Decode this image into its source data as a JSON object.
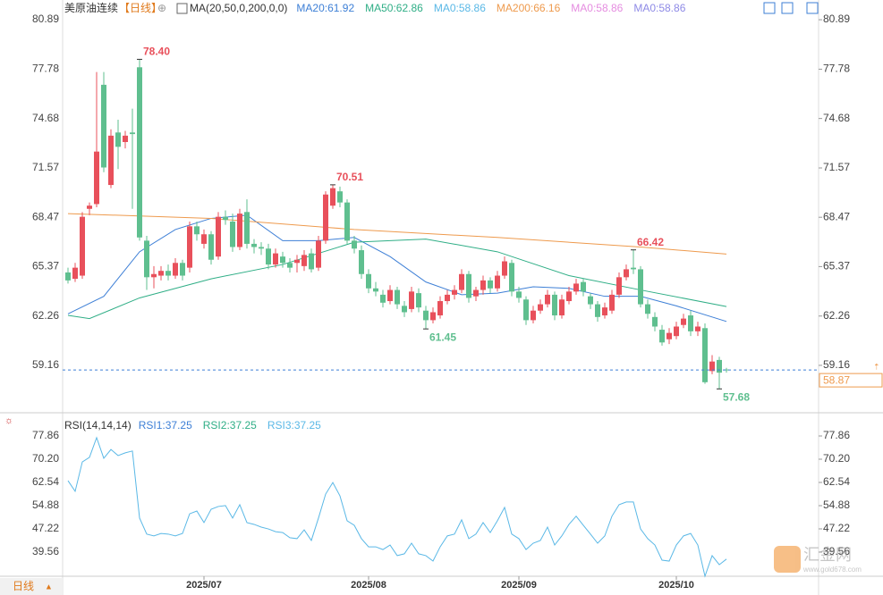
{
  "chart_data": [
    {
      "type": "candlestick",
      "title": "美原油连续",
      "period": "【日线】",
      "indicator": "MA(20,50,0,200,0,0)",
      "legend": [
        {
          "text": "MA20:61.92",
          "color": "#3d7fd6"
        },
        {
          "text": "MA50:62.86",
          "color": "#2fae86"
        },
        {
          "text": "MA0:58.86",
          "color": "#5ab8e6"
        },
        {
          "text": "MA200:66.16",
          "color": "#ee9a4d"
        },
        {
          "text": "MA0:58.86",
          "color": "#e58de0"
        },
        {
          "text": "MA0:58.86",
          "color": "#8e8ae6"
        }
      ],
      "up_color": "#e8505b",
      "down_color": "#5fbf8f",
      "ylim": [
        56.18,
        82.13
      ],
      "yticks": [
        59.16,
        62.26,
        65.37,
        68.47,
        71.57,
        74.68,
        77.78,
        80.89
      ],
      "last": {
        "value": 58.87,
        "label": "58.87"
      },
      "xticks": [
        {
          "value": 19,
          "label": "2025/07"
        },
        {
          "value": 42,
          "label": "2025/08"
        },
        {
          "value": 63,
          "label": "2025/09"
        },
        {
          "value": 85,
          "label": "2025/10"
        }
      ],
      "annotations": [
        {
          "index": 10,
          "value": 78.4,
          "label": "78.40",
          "color": "#e8505b"
        },
        {
          "index": 37,
          "value": 70.51,
          "color": "#e8505b"
        },
        {
          "index": 79,
          "value": 66.42,
          "color": "#e8505b"
        },
        {
          "index": 50,
          "value": 61.45,
          "color": "#5fbf8f"
        },
        {
          "index": 91,
          "value": 57.68,
          "color": "#5fbf8f"
        }
      ],
      "candles": [
        [
          65.0,
          65.3,
          64.3,
          64.5
        ],
        [
          64.6,
          65.6,
          64.4,
          65.3
        ],
        [
          64.8,
          68.8,
          64.6,
          68.5
        ],
        [
          69.0,
          69.4,
          68.6,
          69.2
        ],
        [
          69.3,
          77.6,
          69.1,
          72.6
        ],
        [
          76.8,
          77.6,
          71.3,
          71.6
        ],
        [
          70.5,
          74.0,
          70.3,
          73.6
        ],
        [
          73.8,
          74.6,
          71.5,
          72.9
        ],
        [
          73.2,
          73.9,
          72.8,
          73.6
        ],
        [
          73.8,
          75.3,
          69.0,
          73.7
        ],
        [
          77.9,
          78.4,
          67.0,
          67.2
        ],
        [
          67.0,
          67.3,
          63.9,
          64.7
        ],
        [
          64.7,
          65.4,
          64.0,
          64.9
        ],
        [
          64.8,
          65.4,
          64.5,
          65.1
        ],
        [
          65.1,
          65.5,
          64.5,
          64.8
        ],
        [
          64.8,
          65.9,
          64.6,
          65.6
        ],
        [
          65.6,
          65.8,
          64.5,
          64.8
        ],
        [
          65.3,
          68.2,
          65.0,
          67.9
        ],
        [
          67.9,
          68.2,
          67.0,
          67.4
        ],
        [
          66.8,
          67.7,
          66.5,
          67.4
        ],
        [
          67.4,
          67.6,
          65.5,
          65.8
        ],
        [
          66.0,
          68.8,
          65.8,
          68.5
        ],
        [
          68.5,
          68.9,
          68.0,
          68.3
        ],
        [
          68.2,
          68.7,
          66.3,
          66.6
        ],
        [
          66.6,
          69.0,
          66.4,
          68.7
        ],
        [
          68.8,
          69.6,
          66.5,
          66.8
        ],
        [
          66.8,
          67.1,
          66.2,
          66.6
        ],
        [
          66.6,
          66.9,
          66.1,
          66.5
        ],
        [
          66.5,
          66.8,
          65.2,
          65.5
        ],
        [
          65.5,
          66.5,
          65.3,
          66.2
        ],
        [
          66.0,
          66.3,
          65.3,
          65.6
        ],
        [
          65.6,
          65.9,
          65.0,
          65.3
        ],
        [
          65.6,
          66.1,
          65.0,
          65.8
        ],
        [
          65.4,
          66.4,
          65.1,
          66.1
        ],
        [
          66.2,
          66.5,
          65.0,
          65.2
        ],
        [
          65.3,
          67.3,
          65.1,
          67.0
        ],
        [
          67.0,
          70.1,
          66.8,
          69.9
        ],
        [
          69.2,
          70.51,
          69.0,
          70.3
        ],
        [
          70.1,
          70.4,
          69.1,
          69.4
        ],
        [
          69.4,
          69.6,
          66.8,
          67.0
        ],
        [
          67.0,
          67.3,
          66.2,
          66.5
        ],
        [
          66.4,
          66.7,
          64.6,
          64.9
        ],
        [
          64.9,
          65.2,
          63.7,
          64.0
        ],
        [
          64.0,
          64.4,
          63.5,
          63.8
        ],
        [
          63.6,
          63.9,
          62.8,
          63.1
        ],
        [
          63.2,
          64.2,
          63.0,
          63.9
        ],
        [
          63.9,
          64.1,
          62.7,
          63.0
        ],
        [
          62.9,
          63.2,
          62.2,
          62.5
        ],
        [
          62.7,
          64.1,
          62.5,
          63.8
        ],
        [
          63.7,
          64.0,
          62.5,
          62.8
        ],
        [
          62.6,
          62.9,
          61.45,
          62.0
        ],
        [
          62.0,
          62.8,
          61.8,
          62.5
        ],
        [
          62.3,
          63.5,
          62.1,
          63.2
        ],
        [
          63.2,
          63.9,
          63.0,
          63.6
        ],
        [
          63.6,
          64.2,
          63.3,
          63.9
        ],
        [
          63.9,
          65.2,
          63.7,
          64.9
        ],
        [
          64.9,
          65.1,
          63.1,
          63.4
        ],
        [
          63.5,
          64.1,
          63.2,
          63.9
        ],
        [
          63.9,
          64.8,
          63.6,
          64.5
        ],
        [
          64.5,
          64.7,
          63.7,
          64.0
        ],
        [
          64.0,
          65.1,
          63.8,
          64.8
        ],
        [
          64.8,
          66.0,
          64.6,
          65.7
        ],
        [
          65.6,
          65.8,
          63.5,
          63.8
        ],
        [
          63.8,
          64.1,
          63.1,
          63.4
        ],
        [
          63.3,
          63.5,
          61.7,
          62.0
        ],
        [
          62.0,
          62.9,
          61.8,
          62.6
        ],
        [
          62.6,
          63.3,
          62.4,
          63.0
        ],
        [
          63.0,
          63.9,
          62.8,
          63.6
        ],
        [
          63.6,
          63.8,
          62.0,
          62.3
        ],
        [
          62.3,
          63.6,
          62.1,
          63.3
        ],
        [
          63.2,
          64.1,
          63.0,
          63.8
        ],
        [
          63.8,
          64.6,
          63.6,
          64.3
        ],
        [
          64.4,
          64.6,
          63.5,
          63.8
        ],
        [
          63.5,
          63.7,
          62.7,
          63.0
        ],
        [
          63.0,
          63.2,
          61.9,
          62.2
        ],
        [
          62.3,
          63.1,
          62.1,
          62.8
        ],
        [
          62.6,
          63.9,
          62.4,
          63.6
        ],
        [
          63.6,
          65.0,
          63.4,
          64.7
        ],
        [
          64.7,
          65.5,
          64.5,
          65.2
        ],
        [
          65.3,
          66.42,
          64.9,
          65.2
        ],
        [
          65.2,
          65.4,
          62.8,
          63.0
        ],
        [
          63.0,
          63.3,
          62.1,
          62.4
        ],
        [
          62.2,
          62.5,
          61.3,
          61.6
        ],
        [
          61.4,
          61.7,
          60.4,
          60.6
        ],
        [
          60.8,
          61.5,
          60.5,
          61.2
        ],
        [
          61.0,
          61.9,
          60.8,
          61.6
        ],
        [
          61.7,
          62.4,
          61.5,
          62.1
        ],
        [
          62.3,
          62.6,
          61.0,
          61.3
        ],
        [
          61.3,
          61.9,
          61.0,
          61.6
        ],
        [
          61.5,
          61.8,
          58.0,
          58.1
        ],
        [
          58.8,
          59.8,
          58.6,
          59.4
        ],
        [
          59.5,
          59.7,
          57.68,
          58.7
        ],
        [
          58.9,
          59.0,
          58.7,
          58.87
        ]
      ],
      "ma_lines": [
        {
          "color": "#3d7fd6",
          "x": [
            0,
            5,
            10,
            15,
            20,
            25,
            30,
            35,
            40,
            45,
            50,
            55,
            60,
            65,
            70,
            75,
            80,
            85,
            92
          ],
          "values": [
            62.4,
            63.5,
            66.3,
            67.7,
            68.4,
            68.6,
            67.0,
            67.0,
            67.2,
            66.0,
            64.4,
            63.6,
            63.7,
            64.1,
            64.0,
            63.5,
            63.5,
            62.9,
            61.92
          ]
        },
        {
          "color": "#2fae86",
          "x": [
            0,
            3,
            10,
            20,
            30,
            40,
            50,
            60,
            70,
            80,
            92
          ],
          "values": [
            62.3,
            62.1,
            63.4,
            64.6,
            65.5,
            66.9,
            67.1,
            66.3,
            64.8,
            63.9,
            62.86
          ]
        },
        {
          "color": "#ee9a4d",
          "x": [
            0,
            20,
            40,
            60,
            80,
            92
          ],
          "values": [
            68.7,
            68.4,
            67.7,
            67.2,
            66.6,
            66.16
          ]
        }
      ]
    },
    {
      "type": "line",
      "indicator": "RSI(14,14,14)",
      "legend": [
        {
          "text": "RSI1:37.25",
          "color": "#3d7fd6"
        },
        {
          "text": "RSI2:37.25",
          "color": "#2fae86"
        },
        {
          "text": "RSI3:37.25",
          "color": "#5ab8e6"
        }
      ],
      "ylim": [
        31.6,
        83.75
      ],
      "yticks": [
        39.56,
        47.22,
        54.88,
        62.54,
        {
          "value": 70.2,
          "label": "70.20"
        },
        77.86
      ],
      "series": [
        {
          "color": "#5ab8e6",
          "values": [
            63.1,
            59.6,
            69.3,
            70.8,
            77.3,
            70.5,
            73.4,
            71.4,
            72.3,
            72.9,
            50.8,
            45.5,
            44.9,
            45.7,
            45.5,
            44.9,
            45.7,
            52.2,
            53.1,
            49.3,
            53.7,
            54.6,
            54.9,
            50.8,
            55.2,
            49.3,
            48.7,
            47.8,
            47.2,
            46.3,
            46.0,
            44.3,
            44.0,
            46.9,
            43.4,
            50.8,
            58.7,
            62.5,
            58.1,
            49.9,
            48.4,
            44.0,
            41.3,
            41.3,
            40.4,
            41.9,
            38.4,
            39.0,
            42.5,
            39.0,
            38.4,
            36.6,
            41.3,
            44.9,
            45.5,
            50.2,
            44.0,
            45.5,
            49.3,
            46.0,
            49.9,
            54.3,
            45.5,
            44.0,
            40.4,
            42.5,
            43.4,
            47.8,
            41.9,
            44.9,
            48.7,
            51.4,
            48.4,
            45.5,
            42.5,
            44.9,
            51.4,
            55.2,
            56.1,
            56.1,
            47.2,
            44.0,
            41.9,
            36.9,
            36.6,
            41.9,
            44.9,
            45.7,
            41.9,
            31.6,
            38.4,
            35.4,
            37.25
          ]
        }
      ]
    }
  ],
  "period_button": "日线",
  "watermark": {
    "name": "汇金网",
    "url": "www.gold678.com"
  }
}
